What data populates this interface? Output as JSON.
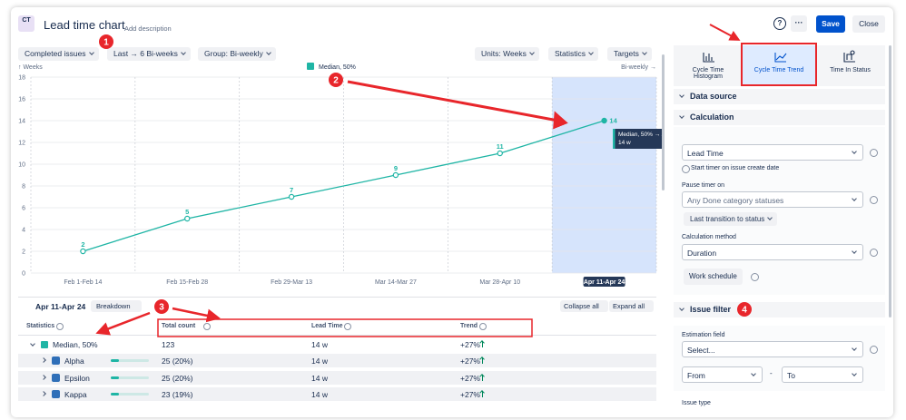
{
  "header": {
    "logo": "CT",
    "title": "Lead time chart",
    "description": "Add description",
    "help": "?",
    "more": "···",
    "save": "Save",
    "close": "Close"
  },
  "toolbar": {
    "left": [
      "Completed issues",
      "Last → 6 Bi-weeks",
      "Group: Bi-weekly"
    ],
    "right": [
      "Units: Weeks",
      "Statistics",
      "Targets"
    ]
  },
  "chart_data": {
    "type": "line",
    "y_label": "↑ Weeks",
    "x_label": "Bi-weekly →",
    "categories": [
      "Feb 1-Feb 14",
      "Feb 15-Feb 28",
      "Feb 29-Mar 13",
      "Mar 14-Mar 27",
      "Mar 28-Apr 10",
      "Apr 11-Apr 24"
    ],
    "series": [
      {
        "name": "Median, 50%",
        "color": "#1fb5a5",
        "values": [
          2,
          5,
          7,
          9,
          11,
          14
        ]
      }
    ],
    "ylim": [
      0,
      18
    ],
    "yticks": [
      0,
      2,
      4,
      6,
      8,
      10,
      12,
      14,
      16,
      18
    ],
    "grid": true,
    "highlighted": "Apr 11-Apr 24",
    "tooltip": {
      "title": "Median, 50% → Apr 11-Apr 24",
      "value": "14 w"
    }
  },
  "breakdown": {
    "period": "Apr 11-Apr 24",
    "button": "Breakdown",
    "collapse": "Collapse all",
    "expand": "Expand all"
  },
  "table": {
    "columns": [
      "Statistics",
      "Total count",
      "Lead Time",
      "Trend"
    ],
    "rows": [
      [
        "Median, 50%",
        "123",
        "14 w",
        "+27%"
      ],
      [
        "Alpha",
        "25 (20%)",
        "14 w",
        "+27%"
      ],
      [
        "Epsilon",
        "25 (20%)",
        "14 w",
        "+27%"
      ],
      [
        "Kappa",
        "23 (19%)",
        "14 w",
        "+27%"
      ]
    ]
  },
  "panel": {
    "tabs": [
      "Cycle Time Histogram",
      "Cycle Time Trend",
      "Time In Status"
    ],
    "data_source": "Data source",
    "calculation": "Calculation",
    "timer_select": "Lead Time",
    "timer_hint": "Start timer on issue create date",
    "pause_label": "Pause timer on",
    "pause_select": "Any Done category statuses",
    "transition": "Last transition to status",
    "method_label": "Calculation method",
    "method_select": "Duration",
    "schedule": "Work schedule",
    "issue_filter": "Issue filter",
    "estimation_label": "Estimation field",
    "estimation_select": "Select...",
    "from": "From",
    "dash": "-",
    "to": "To",
    "issue_type": "Issue type"
  },
  "annotations": [
    "1",
    "2",
    "3",
    "4"
  ]
}
